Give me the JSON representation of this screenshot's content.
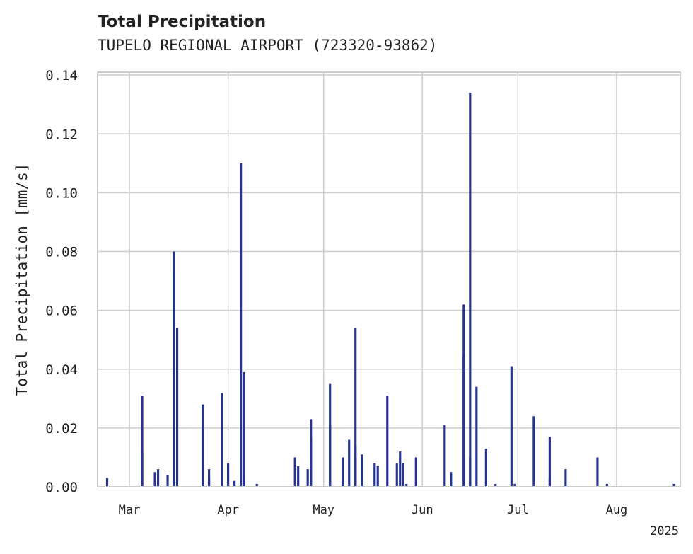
{
  "chart_data": {
    "type": "bar",
    "title": "Total Precipitation",
    "subtitle": "TUPELO REGIONAL AIRPORT (723320-93862)",
    "ylabel": "Total Precipitation [mm/s]",
    "xlabel": "",
    "year_label": "2025",
    "ylim": [
      0,
      0.141
    ],
    "xlim": [
      "2025-02-19",
      "2025-08-21"
    ],
    "yticks": [
      "0.00",
      "0.02",
      "0.04",
      "0.06",
      "0.08",
      "0.10",
      "0.12",
      "0.14"
    ],
    "xticks": [
      {
        "date": "2025-03-01",
        "label": "Mar"
      },
      {
        "date": "2025-04-01",
        "label": "Apr"
      },
      {
        "date": "2025-05-01",
        "label": "May"
      },
      {
        "date": "2025-06-01",
        "label": "Jun"
      },
      {
        "date": "2025-07-01",
        "label": "Jul"
      },
      {
        "date": "2025-08-01",
        "label": "Aug"
      }
    ],
    "grid": true,
    "bar_color": "#26348f",
    "x": [
      "2025-02-22",
      "2025-03-05",
      "2025-03-05",
      "2025-03-09",
      "2025-03-10",
      "2025-03-13",
      "2025-03-15",
      "2025-03-15",
      "2025-03-16",
      "2025-03-24",
      "2025-03-24",
      "2025-03-26",
      "2025-03-26",
      "2025-03-30",
      "2025-04-01",
      "2025-04-03",
      "2025-04-05",
      "2025-04-06",
      "2025-04-06",
      "2025-04-10",
      "2025-04-22",
      "2025-04-23",
      "2025-04-26",
      "2025-04-27",
      "2025-04-27",
      "2025-05-03",
      "2025-05-03",
      "2025-05-07",
      "2025-05-09",
      "2025-05-11",
      "2025-05-11",
      "2025-05-11",
      "2025-05-13",
      "2025-05-17",
      "2025-05-18",
      "2025-05-21",
      "2025-05-24",
      "2025-05-25",
      "2025-05-26",
      "2025-05-27",
      "2025-05-30",
      "2025-06-08",
      "2025-06-10",
      "2025-06-14",
      "2025-06-14",
      "2025-06-16",
      "2025-06-16",
      "2025-06-18",
      "2025-06-21",
      "2025-06-24",
      "2025-06-29",
      "2025-06-30",
      "2025-07-06",
      "2025-07-11",
      "2025-07-11",
      "2025-07-16",
      "2025-07-26",
      "2025-07-29",
      "2025-08-19"
    ],
    "values": [
      0.003,
      0.012,
      0.031,
      0.005,
      0.006,
      0.004,
      0.073,
      0.08,
      0.054,
      0.021,
      0.028,
      0.006,
      0.003,
      0.032,
      0.008,
      0.002,
      0.11,
      0.039,
      0.002,
      0.001,
      0.01,
      0.007,
      0.006,
      0.023,
      0.017,
      0.035,
      0.021,
      0.01,
      0.016,
      0.014,
      0.054,
      0.01,
      0.011,
      0.008,
      0.007,
      0.031,
      0.008,
      0.012,
      0.008,
      0.001,
      0.01,
      0.021,
      0.005,
      0.062,
      0.045,
      0.134,
      0.01,
      0.034,
      0.013,
      0.001,
      0.041,
      0.001,
      0.024,
      0.017,
      0.003,
      0.006,
      0.01,
      0.001,
      0.001
    ]
  }
}
